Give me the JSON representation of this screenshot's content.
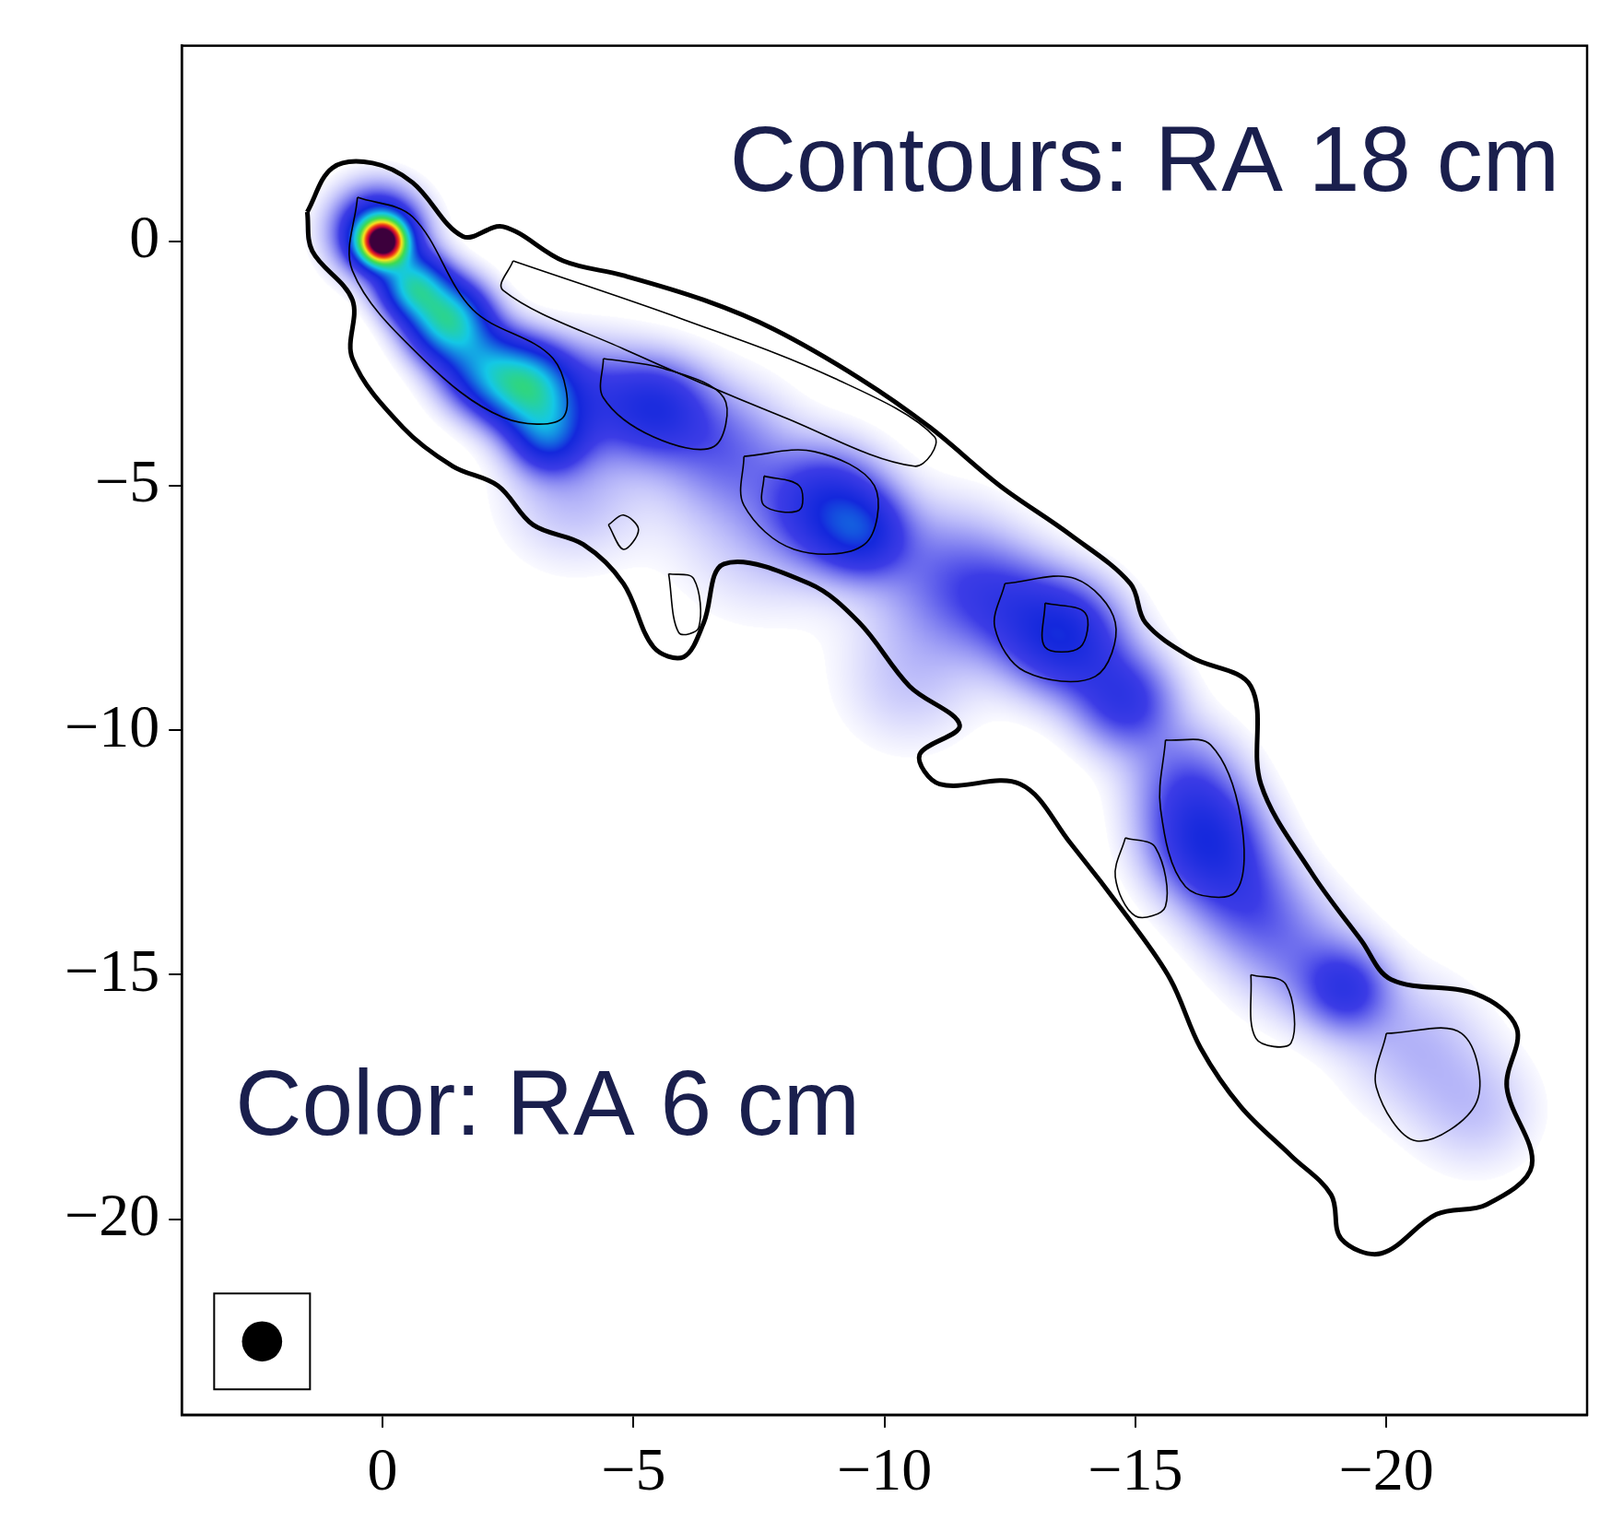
{
  "chart_data": {
    "type": "contour_map",
    "annotations": [
      "Contours: RA 18 cm",
      "Color: RA 6 cm"
    ],
    "xlim": [
      4,
      -24
    ],
    "ylim": [
      -24,
      4
    ],
    "xticks": [
      0,
      {
        "value": -5,
        "label": "−5"
      },
      {
        "value": -10,
        "label": "−10"
      },
      {
        "value": -15,
        "label": "−15"
      },
      {
        "value": -20,
        "label": "−20"
      }
    ],
    "yticks": [
      0,
      {
        "value": -5,
        "label": "−5"
      },
      {
        "value": -10,
        "label": "−10"
      },
      {
        "value": -15,
        "label": "−15"
      },
      {
        "value": -20,
        "label": "−20"
      }
    ],
    "grid": false,
    "beam": {
      "x": 2.4,
      "y": -22.5,
      "diameter": 0.8
    },
    "contours": [
      [
        [
          1.5,
          0.6
        ],
        [
          1.0,
          1.5
        ],
        [
          0.2,
          1.6
        ],
        [
          -0.6,
          1.2
        ],
        [
          -1.6,
          0.1
        ],
        [
          -2.4,
          0.3
        ],
        [
          -3.6,
          -0.4
        ],
        [
          -4.8,
          -0.7
        ],
        [
          -6.4,
          -1.2
        ],
        [
          -7.8,
          -1.8
        ],
        [
          -9.5,
          -2.8
        ],
        [
          -10.9,
          -3.8
        ],
        [
          -12.3,
          -5.0
        ],
        [
          -13.7,
          -6.0
        ],
        [
          -14.9,
          -7.0
        ],
        [
          -15.2,
          -7.8
        ],
        [
          -16.1,
          -8.5
        ],
        [
          -17.3,
          -9.1
        ],
        [
          -17.5,
          -11.1
        ],
        [
          -18.5,
          -12.9
        ],
        [
          -19.5,
          -14.3
        ],
        [
          -20.1,
          -15.1
        ],
        [
          -21.8,
          -15.4
        ],
        [
          -22.6,
          -16.1
        ],
        [
          -22.4,
          -17.3
        ],
        [
          -22.9,
          -18.9
        ],
        [
          -22.0,
          -19.7
        ],
        [
          -21.0,
          -19.9
        ],
        [
          -19.9,
          -20.7
        ],
        [
          -19.1,
          -20.4
        ],
        [
          -18.9,
          -19.5
        ],
        [
          -18.1,
          -18.7
        ],
        [
          -17.1,
          -17.7
        ],
        [
          -16.3,
          -16.5
        ],
        [
          -15.7,
          -15.1
        ],
        [
          -14.9,
          -13.9
        ],
        [
          -13.7,
          -12.3
        ],
        [
          -12.7,
          -11.1
        ],
        [
          -11.1,
          -11.1
        ],
        [
          -10.7,
          -10.5
        ],
        [
          -11.5,
          -9.9
        ],
        [
          -10.5,
          -9.1
        ],
        [
          -9.5,
          -7.8
        ],
        [
          -8.5,
          -7.0
        ],
        [
          -6.8,
          -6.6
        ],
        [
          -6.4,
          -7.8
        ],
        [
          -6.0,
          -8.5
        ],
        [
          -5.4,
          -8.3
        ],
        [
          -4.8,
          -7.0
        ],
        [
          -4.0,
          -6.2
        ],
        [
          -3.0,
          -5.8
        ],
        [
          -2.3,
          -5.0
        ],
        [
          -1.4,
          -4.6
        ],
        [
          -0.4,
          -3.8
        ],
        [
          0.6,
          -2.4
        ],
        [
          0.6,
          -1.2
        ],
        [
          1.4,
          -0.2
        ]
      ],
      [
        [
          0.5,
          0.9
        ],
        [
          -0.6,
          0.5
        ],
        [
          -1.8,
          -1.4
        ],
        [
          -3.4,
          -2.4
        ],
        [
          -3.6,
          -3.6
        ],
        [
          -2.4,
          -3.6
        ],
        [
          -0.8,
          -2.4
        ],
        [
          0.6,
          -0.6
        ]
      ],
      [
        [
          -2.6,
          -0.4
        ],
        [
          -6.0,
          -1.6
        ],
        [
          -9.0,
          -2.8
        ],
        [
          -11.0,
          -4.0
        ],
        [
          -10.6,
          -4.6
        ],
        [
          -8.0,
          -3.6
        ],
        [
          -4.8,
          -2.2
        ],
        [
          -2.4,
          -1.0
        ]
      ],
      [
        [
          -4.4,
          -2.4
        ],
        [
          -5.6,
          -2.6
        ],
        [
          -6.8,
          -3.2
        ],
        [
          -6.6,
          -4.2
        ],
        [
          -5.4,
          -4.0
        ],
        [
          -4.4,
          -3.2
        ]
      ],
      [
        [
          -7.2,
          -4.4
        ],
        [
          -8.6,
          -4.3
        ],
        [
          -9.8,
          -5.0
        ],
        [
          -9.6,
          -6.2
        ],
        [
          -8.2,
          -6.3
        ],
        [
          -7.2,
          -5.4
        ]
      ],
      [
        [
          -7.6,
          -4.8
        ],
        [
          -8.3,
          -5.0
        ],
        [
          -8.3,
          -5.5
        ],
        [
          -7.6,
          -5.4
        ]
      ],
      [
        [
          -12.4,
          -7.0
        ],
        [
          -13.8,
          -6.9
        ],
        [
          -14.6,
          -7.8
        ],
        [
          -14.2,
          -8.9
        ],
        [
          -12.8,
          -8.8
        ],
        [
          -12.2,
          -7.9
        ]
      ],
      [
        [
          -13.2,
          -7.4
        ],
        [
          -14.0,
          -7.6
        ],
        [
          -13.9,
          -8.3
        ],
        [
          -13.2,
          -8.3
        ]
      ],
      [
        [
          -15.6,
          -10.2
        ],
        [
          -16.5,
          -10.3
        ],
        [
          -17.1,
          -11.8
        ],
        [
          -17.0,
          -13.3
        ],
        [
          -16.0,
          -13.2
        ],
        [
          -15.5,
          -11.6
        ]
      ],
      [
        [
          -14.8,
          -12.2
        ],
        [
          -15.4,
          -12.4
        ],
        [
          -15.6,
          -13.6
        ],
        [
          -15.0,
          -13.8
        ],
        [
          -14.6,
          -13.0
        ]
      ],
      [
        [
          -17.3,
          -15.0
        ],
        [
          -18.0,
          -15.2
        ],
        [
          -18.1,
          -16.4
        ],
        [
          -17.4,
          -16.3
        ]
      ],
      [
        [
          -20.0,
          -16.2
        ],
        [
          -21.5,
          -16.2
        ],
        [
          -21.8,
          -17.6
        ],
        [
          -20.6,
          -18.4
        ],
        [
          -19.8,
          -17.3
        ]
      ],
      [
        [
          -4.5,
          -5.8
        ],
        [
          -4.8,
          -5.6
        ],
        [
          -5.1,
          -5.9
        ],
        [
          -4.8,
          -6.3
        ]
      ],
      [
        [
          -5.7,
          -6.8
        ],
        [
          -6.2,
          -6.9
        ],
        [
          -6.3,
          -7.9
        ],
        [
          -5.9,
          -8.0
        ]
      ]
    ],
    "color_components": [
      {
        "x": 0,
        "y": 0,
        "peak": 1.0,
        "size": 0.3
      },
      {
        "x": 0.1,
        "y": 0.2,
        "peak": 0.3,
        "size": 0.6
      },
      {
        "x": -0.6,
        "y": -0.9,
        "peak": 0.35,
        "size": 0.45
      },
      {
        "x": -1.3,
        "y": -1.6,
        "peak": 0.42,
        "size": 0.55
      },
      {
        "x": -2.0,
        "y": -2.6,
        "peak": 0.25,
        "size": 0.6
      },
      {
        "x": -2.9,
        "y": -3.0,
        "peak": 0.38,
        "size": 0.6
      },
      {
        "x": -3.3,
        "y": -4.0,
        "peak": 0.2,
        "size": 0.5
      },
      {
        "x": -4.2,
        "y": -3.2,
        "peak": 0.12,
        "size": 0.8
      },
      {
        "x": -5.5,
        "y": -3.4,
        "peak": 0.17,
        "size": 0.7
      },
      {
        "x": -6.8,
        "y": -4.2,
        "peak": 0.1,
        "size": 0.9
      },
      {
        "x": -8.9,
        "y": -5.4,
        "peak": 0.19,
        "size": 0.8
      },
      {
        "x": -9.6,
        "y": -6.0,
        "peak": 0.15,
        "size": 0.6
      },
      {
        "x": -11.2,
        "y": -6.8,
        "peak": 0.1,
        "size": 1.0
      },
      {
        "x": -12.4,
        "y": -7.4,
        "peak": 0.1,
        "size": 0.8
      },
      {
        "x": -13.6,
        "y": -8.1,
        "peak": 0.22,
        "size": 0.8
      },
      {
        "x": -14.8,
        "y": -9.4,
        "peak": 0.16,
        "size": 0.7
      },
      {
        "x": -16.0,
        "y": -11.0,
        "peak": 0.1,
        "size": 0.8
      },
      {
        "x": -16.4,
        "y": -12.3,
        "peak": 0.2,
        "size": 0.8
      },
      {
        "x": -17.2,
        "y": -13.5,
        "peak": 0.1,
        "size": 0.8
      },
      {
        "x": -18.2,
        "y": -14.6,
        "peak": 0.08,
        "size": 0.9
      },
      {
        "x": -19.2,
        "y": -15.3,
        "peak": 0.14,
        "size": 0.6
      },
      {
        "x": -20.5,
        "y": -16.4,
        "peak": 0.06,
        "size": 1.0
      },
      {
        "x": -21.8,
        "y": -17.8,
        "peak": 0.05,
        "size": 0.9
      },
      {
        "x": -3.8,
        "y": -5.2,
        "peak": 0.06,
        "size": 1.0
      },
      {
        "x": -7.5,
        "y": -6.0,
        "peak": 0.05,
        "size": 1.2
      },
      {
        "x": -10.5,
        "y": -9.0,
        "peak": 0.05,
        "size": 1.0
      }
    ]
  }
}
